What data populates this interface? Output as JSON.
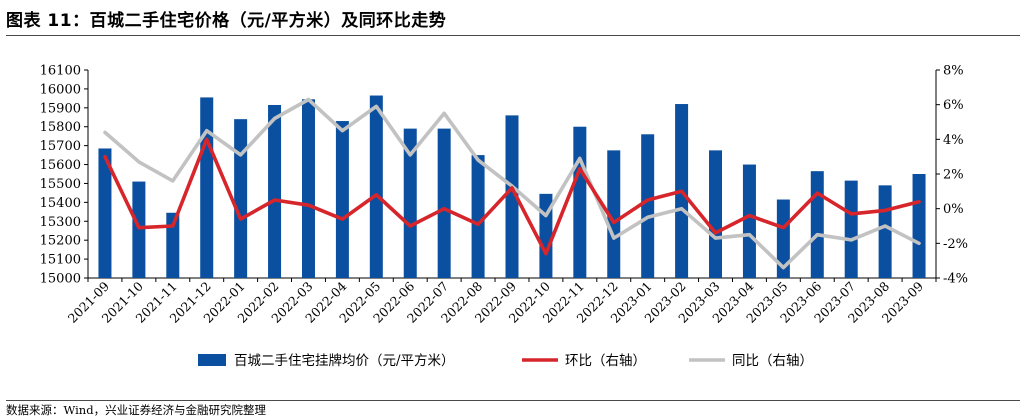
{
  "figure": {
    "title": "图表 11：百城二手住宅价格（元/平方米）及同环比走势",
    "source": "数据来源：Wind，兴业证券经济与金融研究院整理"
  },
  "chart_data": {
    "type": "bar",
    "categories": [
      "2021-09",
      "2021-10",
      "2021-11",
      "2021-12",
      "2022-01",
      "2022-02",
      "2022-03",
      "2022-04",
      "2022-05",
      "2022-06",
      "2022-07",
      "2022-08",
      "2022-09",
      "2022-10",
      "2022-11",
      "2022-12",
      "2023-01",
      "2023-02",
      "2023-03",
      "2023-04",
      "2023-05",
      "2023-06",
      "2023-07",
      "2023-08",
      "2023-09"
    ],
    "series": [
      {
        "name": "百城二手住宅挂牌均价（元/平方米）",
        "type": "bar",
        "axis": "left",
        "values": [
          15685,
          15510,
          15345,
          15955,
          15840,
          15915,
          15945,
          15830,
          15965,
          15790,
          15790,
          15650,
          15860,
          15445,
          15800,
          15675,
          15760,
          15920,
          15675,
          15600,
          15415,
          15565,
          15515,
          15490,
          15550
        ]
      },
      {
        "name": "环比（右轴）",
        "type": "line",
        "axis": "right",
        "values": [
          3.0,
          -1.1,
          -1.0,
          4.0,
          -0.6,
          0.5,
          0.2,
          -0.6,
          0.8,
          -1.0,
          0.0,
          -0.9,
          1.2,
          -2.6,
          2.3,
          -0.8,
          0.5,
          1.0,
          -1.4,
          -0.4,
          -1.1,
          0.9,
          -0.3,
          -0.1,
          0.4
        ]
      },
      {
        "name": "同比（右轴）",
        "type": "line",
        "axis": "right",
        "values": [
          4.4,
          2.7,
          1.6,
          4.5,
          3.1,
          5.2,
          6.3,
          4.5,
          5.9,
          3.1,
          5.5,
          2.8,
          1.3,
          -0.4,
          2.9,
          -1.7,
          -0.5,
          0.0,
          -1.7,
          -1.5,
          -3.4,
          -1.5,
          -1.8,
          -1.0,
          -2.0
        ]
      }
    ],
    "y_left": {
      "min": 15000,
      "max": 16100,
      "step": 100,
      "ticks": [
        "15000",
        "15100",
        "15200",
        "15300",
        "15400",
        "15500",
        "15600",
        "15700",
        "15800",
        "15900",
        "16000",
        "16100"
      ]
    },
    "y_right": {
      "min": -4,
      "max": 8,
      "step": 2,
      "ticks": [
        "-4%",
        "-2%",
        "0%",
        "2%",
        "4%",
        "6%",
        "8%"
      ]
    },
    "grid": false,
    "legend": "bottom",
    "colors": {
      "bar": "#0a4fa0",
      "mom": "#d6262b",
      "yoy": "#c2c2c2"
    }
  }
}
